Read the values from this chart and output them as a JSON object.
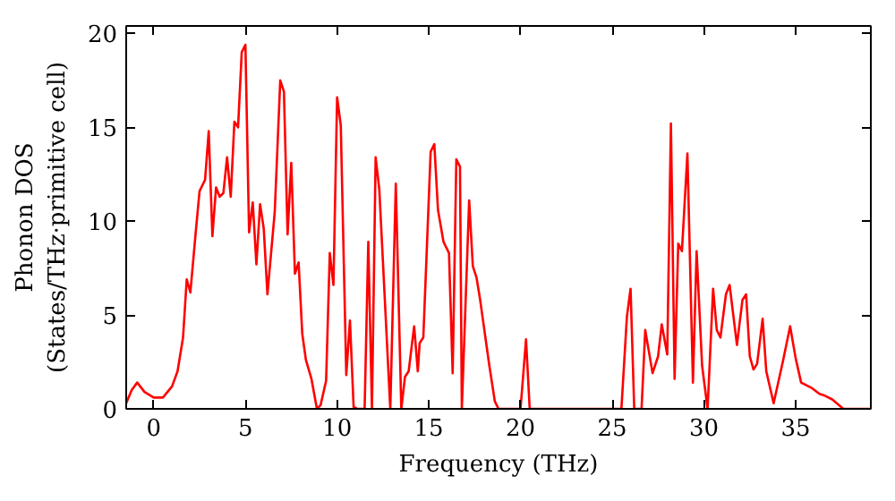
{
  "chart_data": {
    "type": "line",
    "xlabel": "Frequency (THz)",
    "ylabel": "Phonon DOS\n(States/THz·primitive cell)",
    "xlim": [
      -1.5,
      39.1
    ],
    "ylim": [
      0,
      20.4
    ],
    "xticks": [
      0,
      5,
      10,
      15,
      20,
      25,
      30,
      35
    ],
    "yticks": [
      0,
      5,
      10,
      15,
      20
    ],
    "grid": false,
    "series": [
      {
        "color": "#ff0000",
        "x": [
          -1.5,
          -1.2,
          -0.9,
          -0.5,
          0,
          0.5,
          1.0,
          1.3,
          1.6,
          1.8,
          2.0,
          2.3,
          2.5,
          2.8,
          3.0,
          3.2,
          3.4,
          3.6,
          3.8,
          4.0,
          4.2,
          4.4,
          4.6,
          4.8,
          5.0,
          5.2,
          5.4,
          5.6,
          5.8,
          6.0,
          6.2,
          6.6,
          6.9,
          7.1,
          7.3,
          7.5,
          7.7,
          7.9,
          8.1,
          8.3,
          8.6,
          8.9,
          9.1,
          9.4,
          9.6,
          9.8,
          10.0,
          10.2,
          10.5,
          10.7,
          10.9,
          11.1,
          11.5,
          11.7,
          11.9,
          12.1,
          12.3,
          12.9,
          13.2,
          13.5,
          13.7,
          13.9,
          14.2,
          14.4,
          14.5,
          14.7,
          15.1,
          15.3,
          15.5,
          15.8,
          16.1,
          16.3,
          16.5,
          16.7,
          16.8,
          17.2,
          17.4,
          17.6,
          17.8,
          18.3,
          18.6,
          18.8,
          20.0,
          20.3,
          20.5,
          25.5,
          25.8,
          26.0,
          26.2,
          26.6,
          26.8,
          27.2,
          27.5,
          27.7,
          28.0,
          28.2,
          28.4,
          28.6,
          28.8,
          29.1,
          29.4,
          29.6,
          29.9,
          30.2,
          30.5,
          30.7,
          30.9,
          31.2,
          31.4,
          31.6,
          31.8,
          32.1,
          32.3,
          32.5,
          32.7,
          32.9,
          33.2,
          33.4,
          33.8,
          34.3,
          34.7,
          35.0,
          35.3,
          35.9,
          36.3,
          36.6,
          37.0,
          37.6,
          39.1
        ],
        "values": [
          0.3,
          1.0,
          1.4,
          0.9,
          0.6,
          0.6,
          1.2,
          2.0,
          3.8,
          6.9,
          6.2,
          9.5,
          11.6,
          12.2,
          14.8,
          9.2,
          11.8,
          11.3,
          11.5,
          13.4,
          11.3,
          15.3,
          15.0,
          19.0,
          19.4,
          9.4,
          11.0,
          7.7,
          10.9,
          9.6,
          6.1,
          10.5,
          17.5,
          16.9,
          9.3,
          13.1,
          7.2,
          7.8,
          4.0,
          2.6,
          1.6,
          0.0,
          0.2,
          1.5,
          8.3,
          6.6,
          16.6,
          15.1,
          1.8,
          4.7,
          0.1,
          0.0,
          0.0,
          8.9,
          0.0,
          13.4,
          11.7,
          0.0,
          12.0,
          0.0,
          1.7,
          2.0,
          4.4,
          2.0,
          3.5,
          3.8,
          13.7,
          14.1,
          10.6,
          8.9,
          8.3,
          1.9,
          13.3,
          12.9,
          0.0,
          11.1,
          7.6,
          7.0,
          5.8,
          2.3,
          0.4,
          0.0,
          0.0,
          3.7,
          0.0,
          0.0,
          4.9,
          6.4,
          0.0,
          0.0,
          4.2,
          1.9,
          2.8,
          4.5,
          2.9,
          15.2,
          1.6,
          8.8,
          8.4,
          13.6,
          1.4,
          8.4,
          2.3,
          0.0,
          6.4,
          4.2,
          3.8,
          6.1,
          6.6,
          5.0,
          3.4,
          5.8,
          6.1,
          2.8,
          2.1,
          2.4,
          4.8,
          2.0,
          0.3,
          2.5,
          4.4,
          2.7,
          1.4,
          1.1,
          0.8,
          0.7,
          0.5,
          0.0,
          0.0
        ]
      }
    ]
  }
}
